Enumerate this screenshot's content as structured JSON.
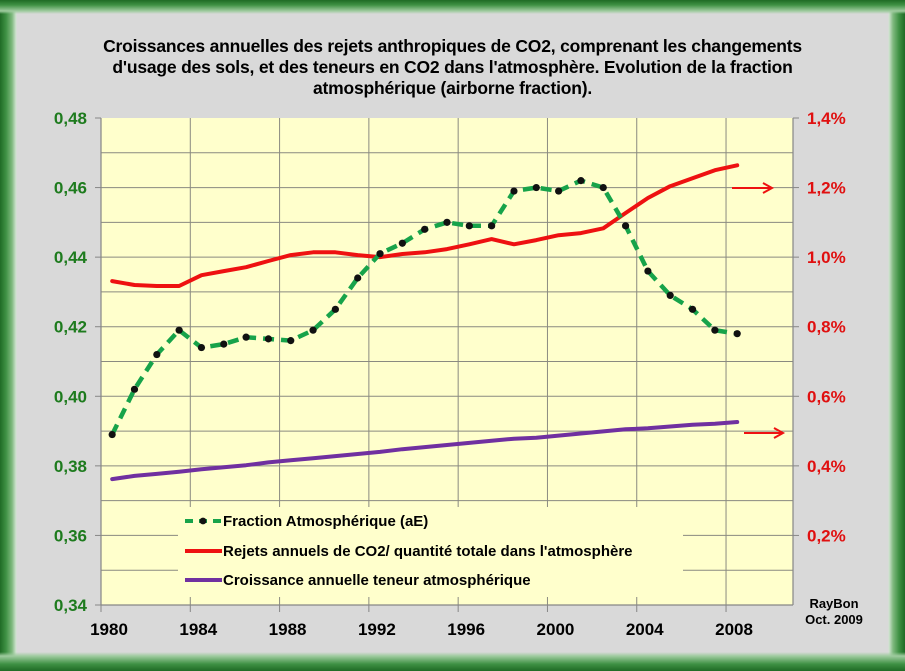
{
  "chart_data": {
    "type": "line",
    "title": "Croissances annuelles des rejets anthropiques de CO2, comprenant les changements d'usage des sols, et des  teneurs en CO2 dans l'atmosphère. Evolution de la fraction atmosphérique (airborne fraction).",
    "title_lines": [
      "Croissances annuelles des rejets anthropiques de CO2, comprenant les changements",
      "d'usage des sols, et des  teneurs en CO2 dans l'atmosphère. Evolution de la fraction",
      "atmosphérique (airborne fraction)."
    ],
    "xlabel": "",
    "ylabel_left": "",
    "ylabel_right": "",
    "xlim": [
      1980,
      2011
    ],
    "x_ticks": [
      "1980",
      "1984",
      "1988",
      "1992",
      "1996",
      "2000",
      "2004",
      "2008"
    ],
    "x_tick_values": [
      1980,
      1984,
      1988,
      1992,
      1996,
      2000,
      2004,
      2008
    ],
    "ylim_left": [
      0.34,
      0.48
    ],
    "y_ticks_left": [
      "0,34",
      "0,36",
      "0,38",
      "0,40",
      "0,42",
      "0,44",
      "0,46",
      "0,48"
    ],
    "y_tick_values_left": [
      0.34,
      0.36,
      0.38,
      0.4,
      0.42,
      0.44,
      0.46,
      0.48
    ],
    "ylim_right": [
      0.0,
      1.4
    ],
    "y_ticks_right": [
      "0,2%",
      "0,4%",
      "0,6%",
      "0,8%",
      "1,0%",
      "1,2%",
      "1,4%"
    ],
    "y_tick_values_right": [
      0.2,
      0.4,
      0.6,
      0.8,
      1.0,
      1.2,
      1.4
    ],
    "grid": true,
    "legend_position": "bottom-left inside plot",
    "x": [
      1980.5,
      1981.5,
      1982.5,
      1983.5,
      1984.5,
      1985.5,
      1986.5,
      1987.5,
      1988.5,
      1989.5,
      1990.5,
      1991.5,
      1992.5,
      1993.5,
      1994.5,
      1995.5,
      1996.5,
      1997.5,
      1998.5,
      1999.5,
      2000.5,
      2001.5,
      2002.5,
      2003.5,
      2004.5,
      2005.5,
      2006.5,
      2007.5,
      2008.5
    ],
    "series": [
      {
        "name": "Fraction Atmosphérique (aE)",
        "axis": "left",
        "color": "#17a34a",
        "style": "dashed-markers",
        "values": [
          0.389,
          0.402,
          0.412,
          0.419,
          0.414,
          0.415,
          0.417,
          0.4165,
          0.416,
          0.419,
          0.425,
          0.434,
          0.441,
          0.444,
          0.448,
          0.45,
          0.449,
          0.449,
          0.459,
          0.46,
          0.459,
          0.462,
          0.46,
          0.449,
          0.436,
          0.429,
          0.425,
          0.419,
          0.418
        ]
      },
      {
        "name": "Rejets annuels de CO2/ quantité totale dans l'atmosphère",
        "axis": "right",
        "unit": "%",
        "color": "#ee1111",
        "style": "solid",
        "values": [
          0.931,
          0.92,
          0.917,
          0.917,
          0.948,
          0.96,
          0.971,
          0.989,
          1.006,
          1.014,
          1.014,
          1.006,
          1.0,
          1.009,
          1.014,
          1.023,
          1.037,
          1.052,
          1.037,
          1.049,
          1.063,
          1.069,
          1.083,
          1.127,
          1.17,
          1.204,
          1.227,
          1.25,
          1.264
        ]
      },
      {
        "name": "Croissance annuelle teneur atmosphérique",
        "axis": "right",
        "unit": "%",
        "color": "#7030a0",
        "style": "solid",
        "values": [
          0.362,
          0.371,
          0.377,
          0.383,
          0.39,
          0.396,
          0.402,
          0.41,
          0.416,
          0.422,
          0.428,
          0.434,
          0.44,
          0.448,
          0.454,
          0.46,
          0.466,
          0.472,
          0.478,
          0.481,
          0.487,
          0.493,
          0.499,
          0.505,
          0.508,
          0.513,
          0.518,
          0.521,
          0.526
        ]
      }
    ],
    "annotations": [
      {
        "type": "arrow",
        "direction": "right",
        "color": "#ee1111",
        "points_to_axis": "right",
        "near_value": 1.2
      },
      {
        "type": "arrow",
        "direction": "right",
        "color": "#ee1111",
        "points_to_axis": "right",
        "near_value": 0.49
      }
    ],
    "credit_lines": [
      "RayBon",
      "Oct. 2009"
    ]
  },
  "colors": {
    "background": "#d9d9d9",
    "plot_background": "#ffffcc",
    "frame": "#2e7d32",
    "left_axis_text": "#1e7b1e",
    "right_axis_text": "#e01010"
  }
}
